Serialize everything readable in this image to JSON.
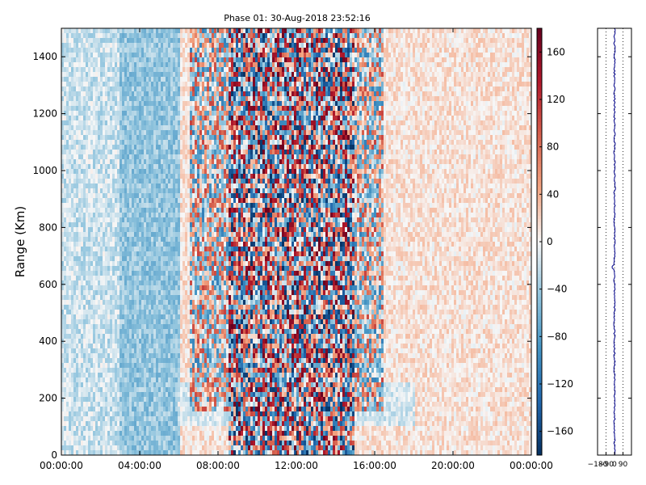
{
  "chart_data": [
    {
      "type": "heatmap",
      "title": "Phase 01: 30-Aug-2018 23:52:16",
      "xlabel": "",
      "ylabel": "Range (Km)",
      "x_ticks": [
        "00:00:00",
        "04:00:00",
        "08:00:00",
        "12:00:00",
        "16:00:00",
        "20:00:00",
        "00:00:00"
      ],
      "x_range_hours": [
        0,
        24
      ],
      "y_ticks": [
        0,
        200,
        400,
        600,
        800,
        1000,
        1200,
        1400
      ],
      "ylim": [
        0,
        1500
      ],
      "colormap": "RdBu_r",
      "clim": [
        -180,
        180
      ],
      "colorbar_ticks": [
        "−160",
        "−120",
        "−80",
        "−40",
        "0",
        "40",
        "80",
        "120",
        "160"
      ],
      "colorbar_values": [
        -160,
        -120,
        -80,
        -40,
        0,
        40,
        80,
        120,
        160
      ],
      "patterns": [
        {
          "description": "strong +/- phase noise",
          "hours": [
            8.5,
            15
          ],
          "ranges_km": [
            0,
            1500
          ]
        },
        {
          "description": "moderate noise band",
          "hours": [
            6.5,
            16.5
          ],
          "ranges_km": [
            150,
            1500
          ]
        },
        {
          "description": "mostly negative bias",
          "hours": [
            3,
            6
          ],
          "ranges_km": [
            0,
            1500
          ]
        },
        {
          "description": "low range band",
          "hours": [
            6,
            18
          ],
          "ranges_km": [
            100,
            250
          ]
        }
      ],
      "grid": false
    },
    {
      "type": "line",
      "x_ticks": [
        "−180",
        "−90",
        "0",
        "90"
      ],
      "xlim": [
        -180,
        180
      ],
      "ylim": [
        0,
        1500
      ],
      "grid_x": [
        -90,
        0,
        90
      ],
      "line_color": "#00008b",
      "mean_value": 0,
      "approx_amplitude": 8,
      "spikes": [
        {
          "y": 660,
          "x": -25
        },
        {
          "y": 940,
          "x": 10
        }
      ]
    }
  ]
}
